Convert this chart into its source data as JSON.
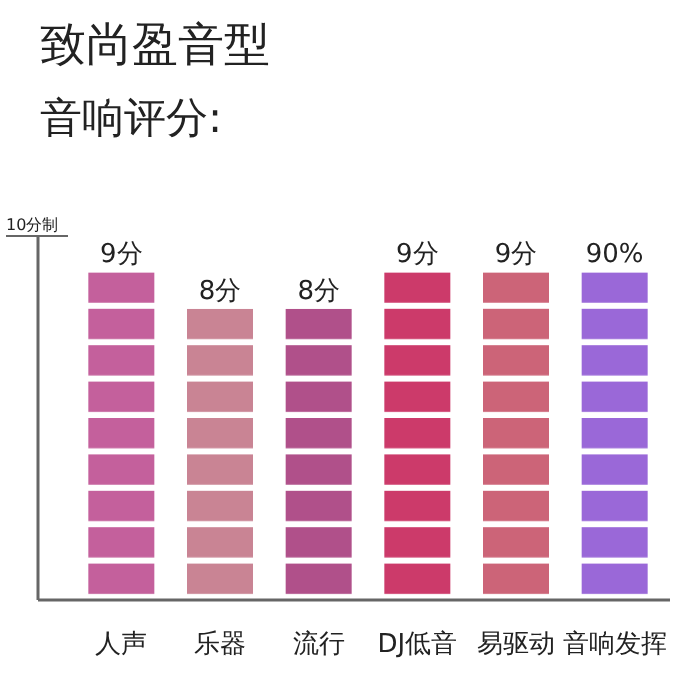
{
  "chart_data": {
    "type": "bar",
    "title": "致尚盈音型",
    "subtitle": "音响评分:",
    "ylabel": "10分制",
    "categories": [
      "人声",
      "乐器",
      "流行",
      "DJ低音",
      "易驱动",
      "音响发挥"
    ],
    "series": [
      {
        "values": [
          9,
          8,
          8,
          9,
          9,
          null
        ],
        "value_labels": [
          "9分",
          "8分",
          "8分",
          "9分",
          "9分",
          null
        ],
        "colors": [
          "#c4609c",
          "#c98494",
          "#b0508a",
          "#cc3a6a",
          "#cc6478",
          null
        ]
      },
      {
        "axis": "y2",
        "values": [
          null,
          null,
          null,
          null,
          null,
          90
        ],
        "value_labels": [
          null,
          null,
          null,
          null,
          null,
          "90%"
        ],
        "colors": [
          null,
          null,
          null,
          null,
          null,
          "#9a68d8"
        ]
      }
    ],
    "ylim": [
      0,
      10
    ],
    "y2lim": [
      0,
      100
    ]
  }
}
